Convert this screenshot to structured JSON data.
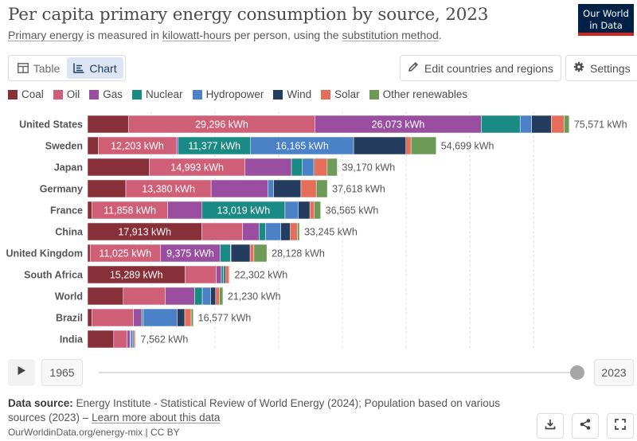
{
  "header": {
    "title": "Per capita primary energy consumption by source, 2023",
    "subtitle_parts": [
      "Primary energy",
      " is measured in ",
      "kilowatt-hours",
      " per person, using the ",
      "substitution method",
      "."
    ],
    "logo_line1": "Our World",
    "logo_line2": "in Data"
  },
  "controls": {
    "tab_table": "Table",
    "tab_chart": "Chart",
    "edit_label": "Edit countries and regions",
    "settings_label": "Settings"
  },
  "timeline": {
    "start_year": "1965",
    "end_year": "2023",
    "position": 1.0
  },
  "footer": {
    "source_label": "Data source:",
    "source_text": " Energy Institute - Statistical Review of World Energy (2024); Population based on various sources (2023) – ",
    "learn_more": "Learn more about this data",
    "url": "OurWorldinData.org/energy-mix | CC BY"
  },
  "icons": {
    "table": "table-icon",
    "chart": "chart-icon",
    "edit": "pencil-icon",
    "settings": "gear-icon",
    "play": "play-icon",
    "download": "download-icon",
    "share": "share-icon",
    "fullscreen": "fullscreen-icon"
  },
  "chart_data": {
    "type": "bar",
    "orientation": "horizontal",
    "stacked": true,
    "unit": "kWh",
    "xlim": [
      0,
      76000
    ],
    "categories": [
      "United States",
      "Sweden",
      "Japan",
      "Germany",
      "France",
      "China",
      "United Kingdom",
      "South Africa",
      "World",
      "Brazil",
      "India"
    ],
    "totals": [
      "75,571 kWh",
      "54,699 kWh",
      "39,170 kWh",
      "37,618 kWh",
      "36,565 kWh",
      "33,245 kWh",
      "28,128 kWh",
      "22,302 kWh",
      "21,230 kWh",
      "16,577 kWh",
      "7,562 kWh"
    ],
    "series": [
      {
        "name": "Coal",
        "color": "#883039",
        "values": [
          6400,
          1700,
          9700,
          6000,
          700,
          17913,
          400,
          15289,
          5600,
          700,
          4100
        ]
      },
      {
        "name": "Oil",
        "color": "#cf5e77",
        "values": [
          29296,
          12203,
          14993,
          13380,
          11858,
          6400,
          11025,
          4900,
          6600,
          6500,
          2100
        ]
      },
      {
        "name": "Gas",
        "color": "#9a4e9f",
        "values": [
          26073,
          300,
          7300,
          8900,
          5400,
          2600,
          9375,
          800,
          4600,
          1300,
          450
        ]
      },
      {
        "name": "Nuclear",
        "color": "#1a8b84",
        "values": [
          6100,
          11377,
          1700,
          0,
          13019,
          1000,
          1600,
          350,
          1200,
          250,
          100
        ]
      },
      {
        "name": "Hydropower",
        "color": "#4a81c7",
        "values": [
          1800,
          16165,
          1700,
          900,
          2100,
          2400,
          100,
          50,
          1300,
          5300,
          350
        ]
      },
      {
        "name": "Wind",
        "color": "#243d5e",
        "values": [
          3100,
          8200,
          200,
          4300,
          1800,
          1500,
          3000,
          300,
          800,
          1200,
          150
        ]
      },
      {
        "name": "Solar",
        "color": "#e56e5a",
        "values": [
          2000,
          800,
          2000,
          2400,
          700,
          1100,
          600,
          500,
          600,
          1000,
          250
        ]
      },
      {
        "name": "Other renewables",
        "color": "#6d9a57",
        "values": [
          800,
          3954,
          1577,
          1738,
          988,
          331,
          2028,
          113,
          530,
          327,
          62
        ]
      }
    ],
    "bar_labels": [
      [
        "",
        "29,296 kWh",
        "26,073 kWh",
        "",
        "",
        "",
        "",
        ""
      ],
      [
        "",
        "12,203 kWh",
        "",
        "11,377 kWh",
        "16,165 kWh",
        "",
        "",
        ""
      ],
      [
        "",
        "14,993 kWh",
        "",
        "",
        "",
        "",
        "",
        ""
      ],
      [
        "",
        "13,380 kWh",
        "",
        "",
        "",
        "",
        "",
        ""
      ],
      [
        "",
        "11,858 kWh",
        "",
        "13,019 kWh",
        "",
        "",
        "",
        ""
      ],
      [
        "17,913 kWh",
        "",
        "",
        "",
        "",
        "",
        "",
        ""
      ],
      [
        "",
        "11,025 kWh",
        "9,375 kWh",
        "",
        "",
        "",
        "",
        ""
      ],
      [
        "15,289 kWh",
        "",
        "",
        "",
        "",
        "",
        "",
        ""
      ],
      [
        "",
        "",
        "",
        "",
        "",
        "",
        "",
        ""
      ],
      [
        "",
        "",
        "",
        "",
        "",
        "",
        "",
        ""
      ],
      [
        "",
        "",
        "",
        "",
        "",
        "",
        "",
        ""
      ]
    ]
  }
}
